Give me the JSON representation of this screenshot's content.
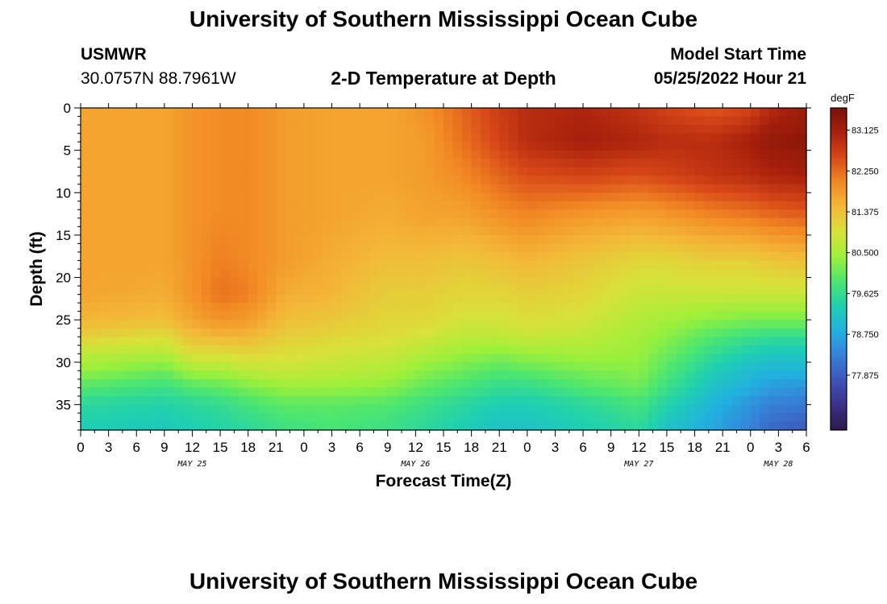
{
  "page": {
    "title": "University of Southern Mississippi Ocean Cube",
    "footer_title": "University of Southern Mississippi Ocean Cube",
    "station": "USMWR",
    "coords": "30.0757N  88.7961W",
    "plot_title": "2-D Temperature at Depth",
    "model_start_label": "Model Start Time",
    "model_start_value": "05/25/2022 Hour 21"
  },
  "chart_data": {
    "type": "heatmap",
    "title": "2-D Temperature at Depth",
    "xlabel": "Forecast Time(Z)",
    "ylabel": "Depth (ft)",
    "x_tick_labels": [
      "0",
      "3",
      "6",
      "9",
      "12",
      "15",
      "18",
      "21",
      "0",
      "3",
      "6",
      "9",
      "12",
      "15",
      "18",
      "21",
      "0",
      "3",
      "6",
      "9",
      "12",
      "15",
      "18",
      "21",
      "0",
      "3",
      "6"
    ],
    "date_labels": [
      {
        "label": "MAY 25",
        "tick_index": 4
      },
      {
        "label": "MAY 26",
        "tick_index": 12
      },
      {
        "label": "MAY 27",
        "tick_index": 20
      },
      {
        "label": "MAY 28",
        "tick_index": 25
      }
    ],
    "y_ticks": [
      0,
      5,
      10,
      15,
      20,
      25,
      30,
      35
    ],
    "ylim": [
      38,
      0
    ],
    "colorbar": {
      "unit": "degF",
      "labels": [
        "83.125",
        "82.250",
        "81.375",
        "80.500",
        "79.625",
        "78.750",
        "77.875"
      ],
      "range": [
        76.7,
        83.6
      ],
      "colors": [
        "#2b1b4a",
        "#3b2f88",
        "#3d54b8",
        "#3780d8",
        "#22b0e0",
        "#1fd0b0",
        "#4ce670",
        "#9cf03a",
        "#d8e23a",
        "#f3b838",
        "#f28a24",
        "#d84818",
        "#a8200c",
        "#7a1208"
      ]
    },
    "x_index_range": [
      0,
      78
    ],
    "depth_range_ft": [
      0,
      38
    ],
    "description_grid": {
      "columns": [
        "x_index",
        "depth_ft",
        "temperature_degF"
      ],
      "keyframes_x": [
        0,
        9,
        12,
        15,
        18,
        22,
        27,
        33,
        37,
        41,
        45,
        48,
        54,
        60,
        63,
        68,
        72,
        74,
        78
      ],
      "depths": [
        0,
        4,
        8,
        13,
        18,
        22,
        25,
        27,
        29,
        31,
        33,
        35,
        38
      ],
      "values": [
        [
          81.7,
          81.7,
          81.7,
          81.7,
          81.7,
          81.7,
          81.5,
          81.2,
          80.7,
          80.4,
          79.9,
          79.5,
          79.3
        ],
        [
          81.7,
          81.7,
          81.7,
          81.7,
          81.7,
          81.6,
          81.4,
          81.0,
          80.6,
          80.1,
          79.7,
          79.4,
          79.2
        ],
        [
          81.9,
          81.9,
          81.9,
          81.9,
          81.9,
          81.9,
          81.7,
          81.4,
          81.0,
          80.5,
          79.9,
          79.5,
          79.3
        ],
        [
          82.0,
          82.0,
          82.0,
          82.0,
          82.1,
          82.2,
          81.9,
          81.5,
          81.0,
          80.5,
          80.0,
          79.6,
          79.4
        ],
        [
          82.0,
          82.0,
          82.0,
          82.0,
          82.0,
          82.1,
          81.8,
          81.5,
          81.1,
          80.7,
          80.2,
          79.8,
          79.5
        ],
        [
          81.8,
          81.8,
          81.8,
          81.8,
          81.8,
          81.6,
          81.4,
          81.2,
          81.0,
          80.8,
          80.4,
          80.0,
          79.7
        ],
        [
          81.7,
          81.7,
          81.7,
          81.7,
          81.6,
          81.5,
          81.3,
          81.1,
          80.9,
          80.7,
          80.4,
          80.0,
          79.8
        ],
        [
          81.7,
          81.7,
          81.7,
          81.6,
          81.4,
          81.2,
          81.1,
          81.0,
          80.8,
          80.6,
          80.3,
          79.9,
          79.7
        ],
        [
          81.9,
          81.8,
          81.8,
          81.7,
          81.4,
          81.2,
          81.1,
          80.9,
          80.6,
          80.3,
          80.0,
          79.7,
          79.5
        ],
        [
          82.3,
          82.2,
          82.0,
          81.7,
          81.3,
          81.1,
          80.9,
          80.7,
          80.4,
          80.1,
          79.8,
          79.5,
          79.3
        ],
        [
          82.7,
          82.6,
          82.3,
          81.9,
          81.4,
          81.1,
          80.9,
          80.7,
          80.3,
          79.9,
          79.6,
          79.3,
          79.1
        ],
        [
          82.9,
          82.9,
          82.5,
          82.0,
          81.5,
          81.2,
          81.0,
          80.8,
          80.4,
          80.0,
          79.6,
          79.3,
          79.1
        ],
        [
          83.0,
          83.1,
          82.6,
          81.8,
          81.3,
          81.1,
          80.9,
          80.7,
          80.5,
          80.2,
          79.9,
          79.5,
          79.3
        ],
        [
          82.8,
          83.0,
          82.5,
          81.7,
          81.1,
          80.8,
          80.6,
          80.5,
          80.4,
          80.3,
          80.1,
          79.8,
          79.5
        ],
        [
          82.6,
          82.9,
          82.6,
          81.8,
          81.1,
          80.8,
          80.5,
          80.3,
          80.1,
          79.9,
          79.7,
          79.4,
          79.1
        ],
        [
          82.4,
          82.9,
          82.8,
          82.0,
          81.2,
          80.8,
          80.3,
          79.9,
          79.6,
          79.3,
          79.1,
          78.9,
          78.7
        ],
        [
          82.6,
          83.1,
          82.9,
          82.1,
          81.2,
          80.8,
          80.2,
          79.7,
          79.3,
          79.0,
          78.8,
          78.5,
          78.3
        ],
        [
          82.9,
          83.3,
          83.0,
          82.2,
          81.3,
          80.8,
          80.2,
          79.6,
          79.2,
          78.9,
          78.6,
          78.3,
          78.0
        ],
        [
          83.2,
          83.4,
          83.1,
          82.3,
          81.4,
          80.8,
          80.2,
          79.6,
          79.2,
          78.9,
          78.5,
          78.2,
          77.8
        ]
      ]
    }
  }
}
